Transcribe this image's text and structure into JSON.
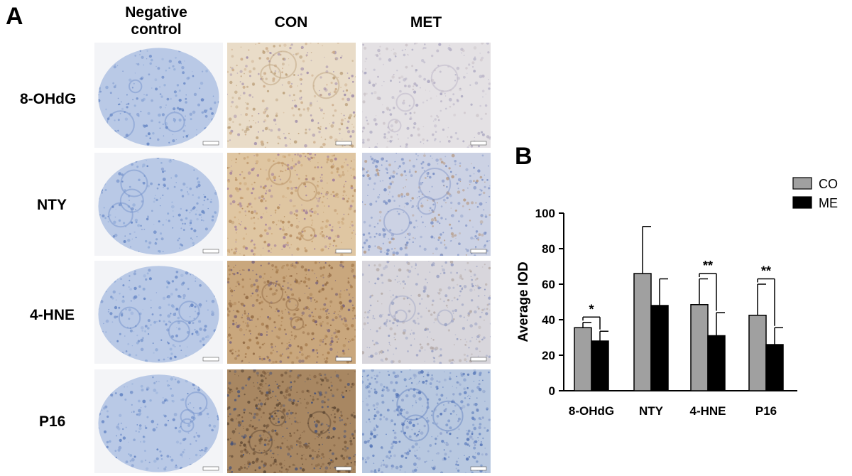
{
  "panel_a": {
    "letter": "A",
    "column_headers": [
      "Negative control",
      "CON",
      "MET"
    ],
    "row_labels": [
      "8-OHdG",
      "NTY",
      "4-HNE",
      "P16"
    ]
  },
  "panel_b": {
    "letter": "B"
  },
  "chart_data": {
    "type": "bar",
    "categories": [
      "8-OHdG",
      "NTY",
      "4-HNE",
      "P16"
    ],
    "series": [
      {
        "name": "CON",
        "values": [
          35.5,
          66,
          48.5,
          42.5
        ],
        "errors": [
          3,
          26.5,
          14.5,
          17.5
        ],
        "color": "#a0a0a0"
      },
      {
        "name": "MET",
        "values": [
          28,
          48,
          31,
          26
        ],
        "errors": [
          5.5,
          15,
          13,
          9.5
        ],
        "color": "#000000"
      }
    ],
    "significance": [
      "*",
      "",
      "**",
      "**"
    ],
    "ylabel": "Average IOD",
    "xlabel": "",
    "ylim": [
      0,
      100
    ],
    "yticks": [
      0,
      20,
      40,
      60,
      80,
      100
    ],
    "legend_position": "top-right",
    "grid": false
  }
}
